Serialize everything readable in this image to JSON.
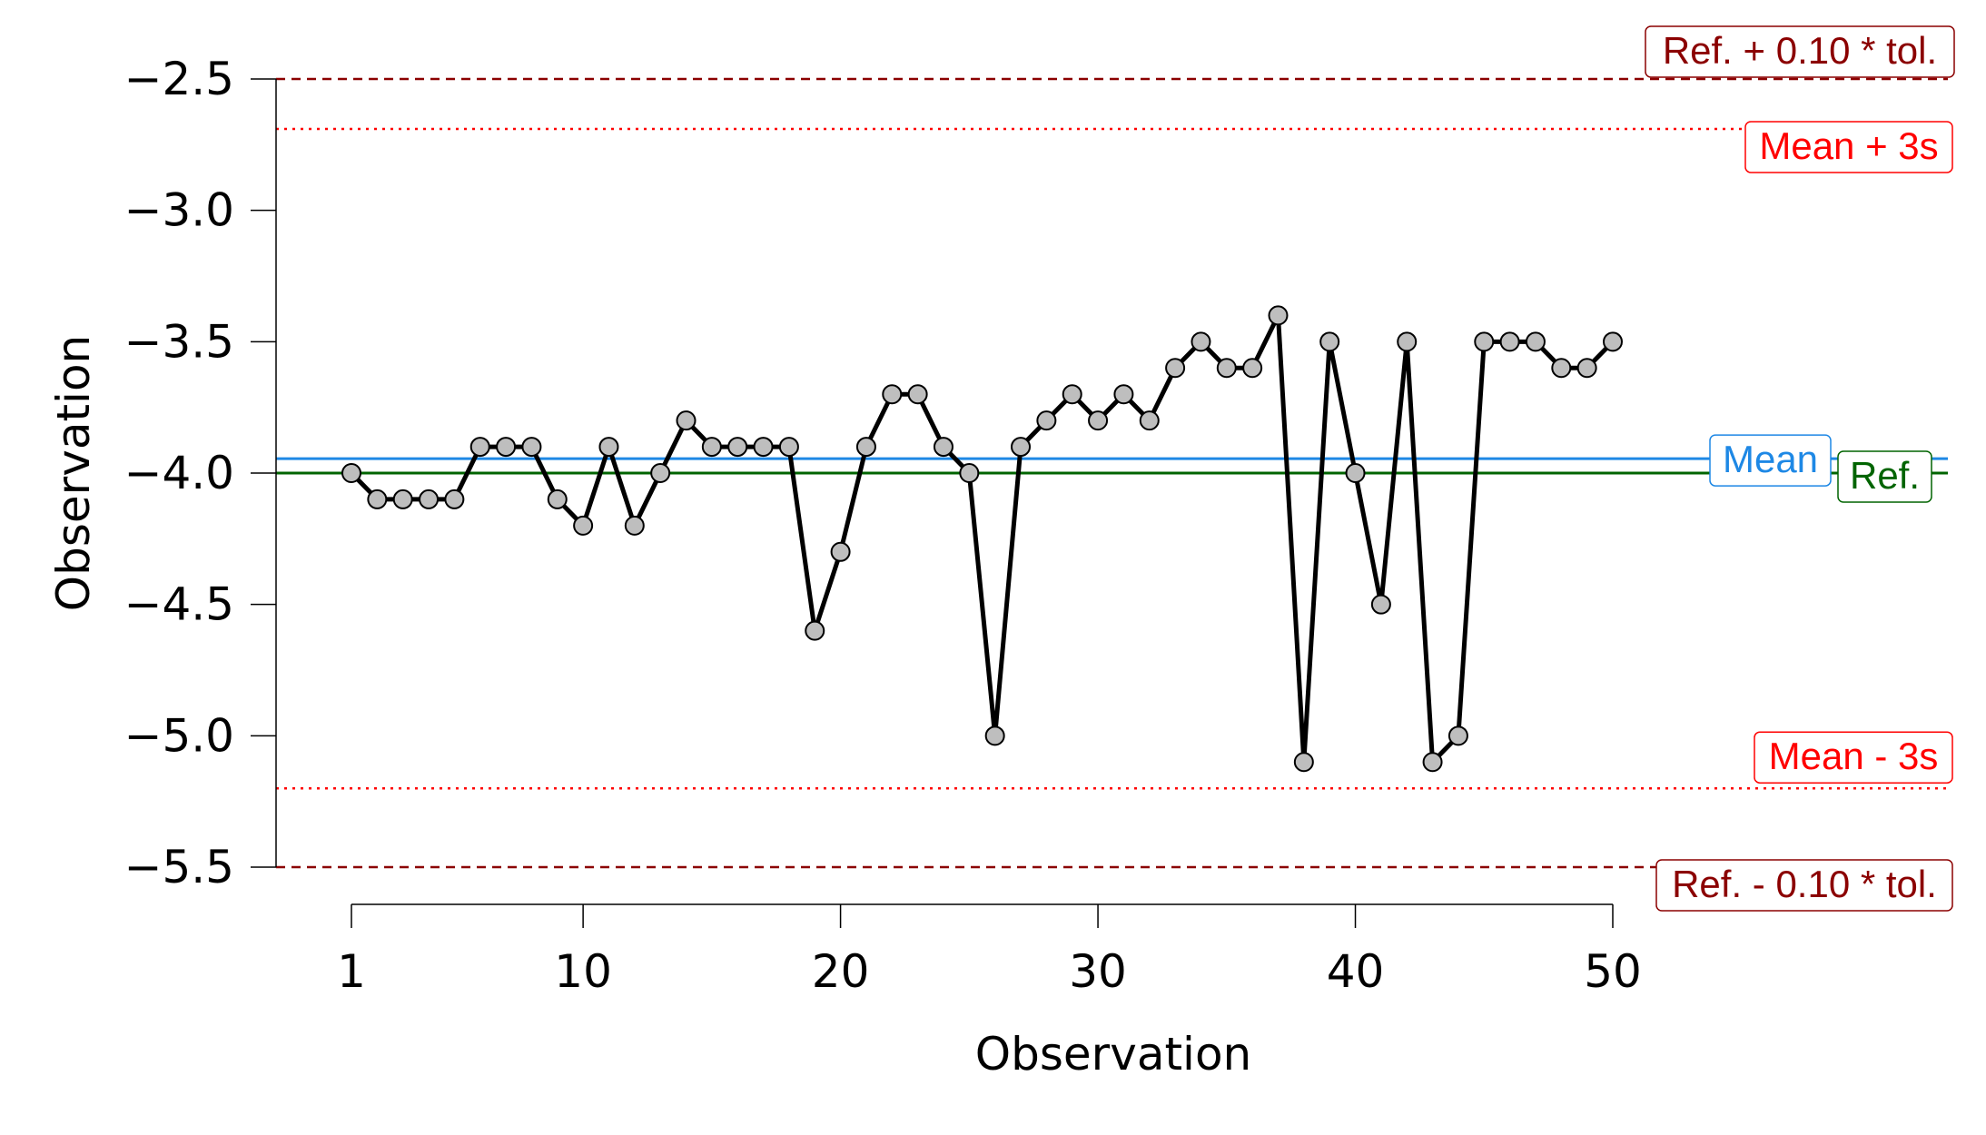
{
  "chart_data": {
    "type": "line",
    "xlabel": "Observation",
    "ylabel": "Observation",
    "xlim": [
      1,
      50
    ],
    "ylim": [
      -5.5,
      -2.5
    ],
    "x_ticks": [
      1,
      10,
      20,
      30,
      40,
      50
    ],
    "x_tick_labels": [
      "1",
      "10",
      "20",
      "30",
      "40",
      "50"
    ],
    "y_ticks": [
      -2.5,
      -3.0,
      -3.5,
      -4.0,
      -4.5,
      -5.0,
      -5.5
    ],
    "y_tick_labels": [
      "−2.5",
      "−3.0",
      "−3.5",
      "−4.0",
      "−4.5",
      "−5.0",
      "−5.5"
    ],
    "grid": false,
    "series": [
      {
        "x": [
          1,
          2,
          3,
          4,
          5,
          6,
          7,
          8,
          9,
          10,
          11,
          12,
          13,
          14,
          15,
          16,
          17,
          18,
          19,
          20,
          21,
          22,
          23,
          24,
          25,
          26,
          27,
          28,
          29,
          30,
          31,
          32,
          33,
          34,
          35,
          36,
          37,
          38,
          39,
          40,
          41,
          42,
          43,
          44,
          45,
          46,
          47,
          48,
          49,
          50
        ],
        "values": [
          -4.0,
          -4.1,
          -4.1,
          -4.1,
          -4.1,
          -3.9,
          -3.9,
          -3.9,
          -4.1,
          -4.2,
          -3.9,
          -4.2,
          -4.0,
          -3.8,
          -3.9,
          -3.9,
          -3.9,
          -3.9,
          -4.6,
          -4.3,
          -3.9,
          -3.7,
          -3.7,
          -3.9,
          -4.0,
          -5.0,
          -3.9,
          -3.8,
          -3.7,
          -3.8,
          -3.7,
          -3.8,
          -3.6,
          -3.5,
          -3.6,
          -3.6,
          -3.4,
          -5.1,
          -3.5,
          -4.0,
          -4.5,
          -3.5,
          -5.1,
          -5.0,
          -3.5,
          -3.5,
          -3.5,
          -3.6,
          -3.6,
          -3.5
        ],
        "line_color": "#000000",
        "marker_color": "#bebebe"
      }
    ],
    "reference_lines": [
      {
        "label": "Ref. + 0.10 * tol.",
        "value": -2.5,
        "color": "#8b0000",
        "style": "dashed"
      },
      {
        "label": "Mean + 3s",
        "value": -2.69,
        "color": "#ff0000",
        "style": "dotted"
      },
      {
        "label": "Mean",
        "value": -3.945,
        "color": "#1e88e5",
        "style": "solid"
      },
      {
        "label": "Ref.",
        "value": -4.0,
        "color": "#006400",
        "style": "solid"
      },
      {
        "label": "Mean - 3s",
        "value": -5.2,
        "color": "#ff0000",
        "style": "dotted"
      },
      {
        "label": "Ref. - 0.10 * tol.",
        "value": -5.5,
        "color": "#8b0000",
        "style": "dashed"
      }
    ]
  }
}
